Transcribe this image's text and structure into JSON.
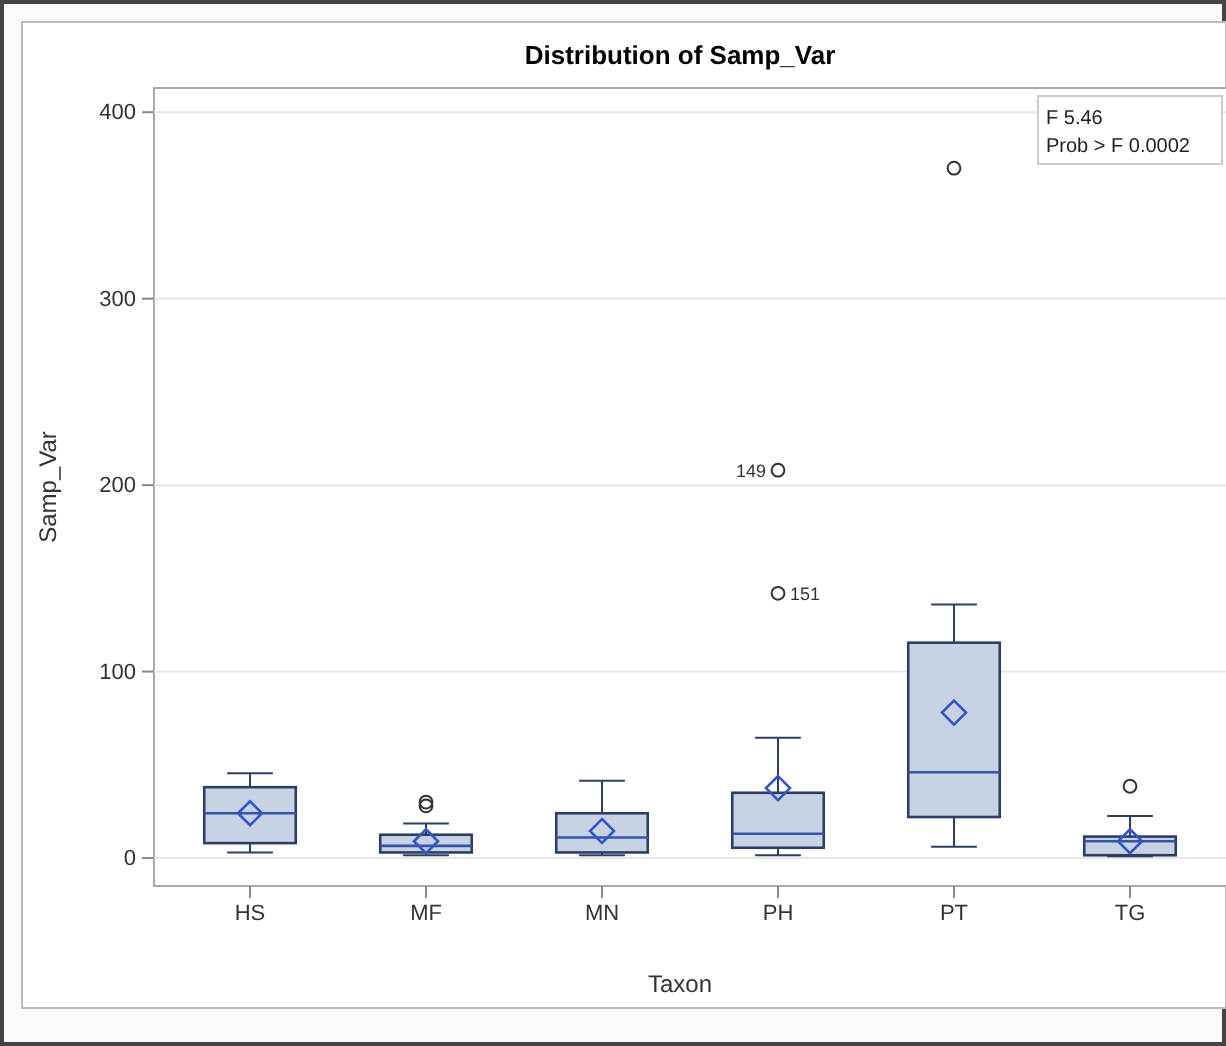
{
  "chart_data": {
    "type": "box",
    "title": "Distribution of Samp_Var",
    "xlabel": "Taxon",
    "ylabel": "Samp_Var",
    "categories": [
      "HS",
      "MF",
      "MN",
      "PH",
      "PT",
      "TG"
    ],
    "boxes": [
      {
        "low": 3,
        "q1": 8,
        "median": 24,
        "q3": 38,
        "high": 45.5,
        "mean": 24
      },
      {
        "low": 1.5,
        "q1": 3,
        "median": 6.5,
        "q3": 12.5,
        "high": 18.5,
        "mean": 9,
        "outliers": [
          28,
          30
        ]
      },
      {
        "low": 1.5,
        "q1": 3,
        "median": 11,
        "q3": 24,
        "high": 41.5,
        "mean": 14.5
      },
      {
        "low": 1.5,
        "q1": 5.5,
        "median": 13,
        "q3": 35,
        "high": 64.5,
        "mean": 37.5,
        "outliers": [
          142,
          208
        ]
      },
      {
        "low": 6,
        "q1": 22,
        "median": 46,
        "q3": 115.5,
        "high": 136,
        "mean": 78,
        "outliers": [
          370
        ]
      },
      {
        "low": 1,
        "q1": 1.5,
        "median": 9,
        "q3": 11.5,
        "high": 22.5,
        "mean": 9,
        "outliers": [
          38.5
        ]
      }
    ],
    "color": "#c7d2e4",
    "ylim": [
      -15,
      413
    ],
    "yticks": [
      0,
      100,
      200,
      300,
      400
    ],
    "grid": "y",
    "annotations": [
      "149",
      "151",
      "F 5.46",
      "Prob > F 0.0002"
    ]
  }
}
